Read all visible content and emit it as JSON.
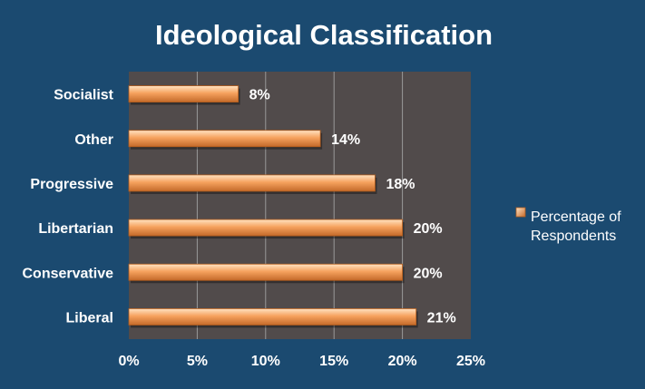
{
  "colors": {
    "background": "#1b4a70",
    "plot_area": "#514b4b",
    "gridline": "#9a9a9a",
    "bar_light": "#ffe3c3",
    "bar_mid": "#f6a25e",
    "bar_dark": "#c46a2a",
    "text": "#ffffff"
  },
  "chart_data": {
    "type": "bar",
    "orientation": "horizontal",
    "title": "Ideological Classification",
    "categories": [
      "Socialist",
      "Other",
      "Progressive",
      "Libertarian",
      "Conservative",
      "Liberal"
    ],
    "series": [
      {
        "name": "Percentage of Respondents",
        "values": [
          8,
          14,
          18,
          20,
          20,
          21
        ],
        "data_labels": [
          "8%",
          "14%",
          "18%",
          "20%",
          "20%",
          "21%"
        ]
      }
    ],
    "xlim": [
      0,
      25
    ],
    "x_ticks": [
      0,
      5,
      10,
      15,
      20,
      25
    ],
    "x_tick_labels": [
      "0%",
      "5%",
      "10%",
      "15%",
      "20%",
      "25%"
    ],
    "grid": true,
    "legend_position": "right"
  }
}
